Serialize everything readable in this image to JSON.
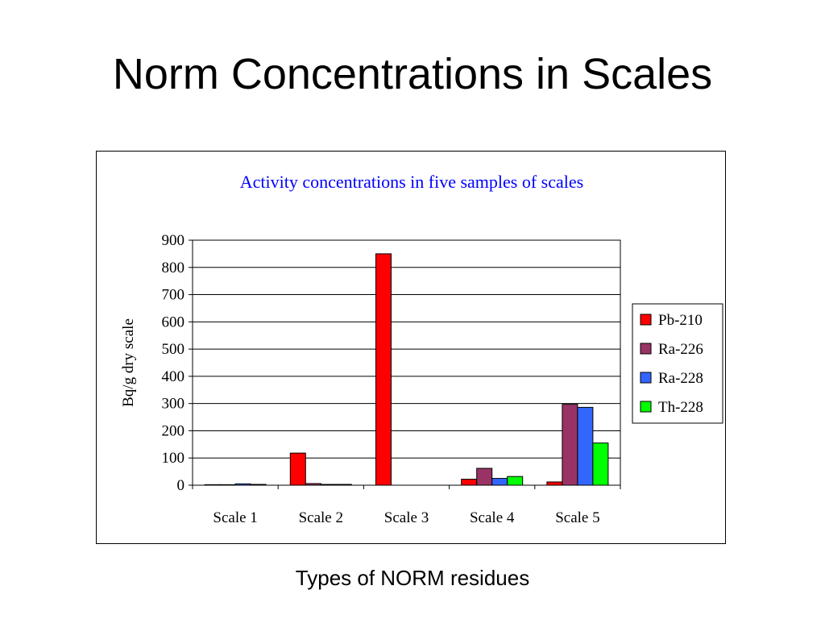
{
  "slide": {
    "title": "Norm Concentrations in Scales",
    "caption": "Types of NORM residues"
  },
  "chart_data": {
    "type": "bar",
    "title": "Activity concentrations in five samples of scales",
    "xlabel": "",
    "ylabel": "Bq/g dry scale",
    "ylim": [
      0,
      900
    ],
    "yticks": [
      0,
      100,
      200,
      300,
      400,
      500,
      600,
      700,
      800,
      900
    ],
    "grid": true,
    "legend_position": "right",
    "categories": [
      "Scale 1",
      "Scale 2",
      "Scale 3",
      "Scale 4",
      "Scale 5"
    ],
    "series": [
      {
        "name": "Pb-210",
        "color": "#ff0000",
        "values": [
          2,
          118,
          850,
          22,
          12
        ]
      },
      {
        "name": "Ra-226",
        "color": "#993366",
        "values": [
          2,
          6,
          0,
          62,
          297
        ]
      },
      {
        "name": "Ra-228",
        "color": "#3366ff",
        "values": [
          5,
          3,
          0,
          25,
          286
        ]
      },
      {
        "name": "Th-228",
        "color": "#00ff00",
        "values": [
          3,
          3,
          0,
          32,
          155
        ]
      }
    ],
    "title_color": "#0000ff"
  }
}
